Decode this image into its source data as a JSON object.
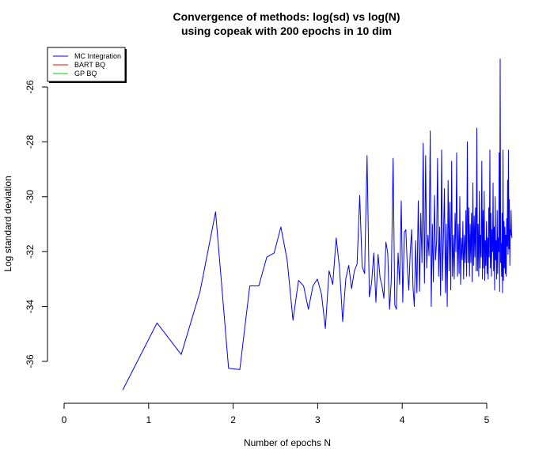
{
  "chart_data": {
    "type": "line",
    "title_line1": "Convergence of methods: log(sd) vs log(N)",
    "title_line2": "using copeak with 200 epochs in 10 dim",
    "xlabel": "Number of epochs N",
    "ylabel": "Log standard deviation",
    "xlim": [
      0,
      5.3
    ],
    "ylim": [
      -37.5,
      -24.8
    ],
    "x_ticks": [
      0,
      1,
      2,
      3,
      4,
      5
    ],
    "y_ticks": [
      -36,
      -34,
      -32,
      -30,
      -28,
      -26
    ],
    "x_tick_labels": [
      "0",
      "1",
      "2",
      "3",
      "4",
      "5"
    ],
    "y_tick_labels": [
      "-36",
      "-34",
      "-32",
      "-30",
      "-28",
      "-26"
    ],
    "legend_position": "top-left",
    "legend": [
      {
        "label": "MC Integration",
        "color": "#0000ff"
      },
      {
        "label": "BART BQ",
        "color": "#ff0000"
      },
      {
        "label": "GP BQ",
        "color": "#00cc00"
      }
    ],
    "series": [
      {
        "name": "MC Integration",
        "color": "#0000ff",
        "points": [
          [
            0.693,
            -37.05
          ],
          [
            1.099,
            -34.6
          ],
          [
            1.386,
            -35.75
          ],
          [
            1.609,
            -33.45
          ],
          [
            1.792,
            -30.55
          ],
          [
            1.946,
            -36.25
          ],
          [
            2.079,
            -36.3
          ],
          [
            2.197,
            -33.25
          ],
          [
            2.303,
            -33.25
          ],
          [
            2.398,
            -32.2
          ],
          [
            2.485,
            -32.05
          ],
          [
            2.565,
            -31.1
          ],
          [
            2.639,
            -32.3
          ],
          [
            2.708,
            -34.5
          ],
          [
            2.773,
            -33.05
          ],
          [
            2.833,
            -33.25
          ],
          [
            2.89,
            -34.1
          ],
          [
            2.944,
            -33.25
          ],
          [
            2.996,
            -33.0
          ],
          [
            3.045,
            -33.55
          ],
          [
            3.091,
            -34.8
          ],
          [
            3.135,
            -32.7
          ],
          [
            3.178,
            -33.2
          ],
          [
            3.219,
            -31.5
          ],
          [
            3.258,
            -32.6
          ],
          [
            3.296,
            -34.55
          ],
          [
            3.332,
            -33.0
          ],
          [
            3.367,
            -32.5
          ],
          [
            3.401,
            -33.35
          ],
          [
            3.434,
            -32.7
          ],
          [
            3.466,
            -32.45
          ],
          [
            3.497,
            -29.95
          ],
          [
            3.526,
            -32.55
          ],
          [
            3.555,
            -32.8
          ],
          [
            3.584,
            -28.5
          ],
          [
            3.611,
            -33.65
          ],
          [
            3.638,
            -33.15
          ],
          [
            3.664,
            -32.05
          ],
          [
            3.689,
            -33.85
          ],
          [
            3.714,
            -32.1
          ],
          [
            3.738,
            -32.95
          ],
          [
            3.761,
            -33.25
          ],
          [
            3.784,
            -33.7
          ],
          [
            3.807,
            -31.65
          ],
          [
            3.829,
            -32.05
          ],
          [
            3.85,
            -34.1
          ],
          [
            3.871,
            -33.05
          ],
          [
            3.892,
            -28.6
          ],
          [
            3.912,
            -33.95
          ],
          [
            3.932,
            -34.1
          ],
          [
            3.951,
            -32.05
          ],
          [
            3.97,
            -33.2
          ],
          [
            3.989,
            -30.15
          ],
          [
            4.007,
            -33.85
          ],
          [
            4.025,
            -31.3
          ],
          [
            4.043,
            -31.2
          ],
          [
            4.06,
            -32.5
          ],
          [
            4.078,
            -33.4
          ],
          [
            4.094,
            -32.1
          ],
          [
            4.111,
            -31.2
          ],
          [
            4.127,
            -33.3
          ],
          [
            4.143,
            -34.0
          ],
          [
            4.159,
            -31.6
          ],
          [
            4.174,
            -33.5
          ],
          [
            4.19,
            -30.15
          ],
          [
            4.205,
            -33.45
          ],
          [
            4.22,
            -30.6
          ],
          [
            4.234,
            -32.4
          ],
          [
            4.248,
            -28.05
          ],
          [
            4.263,
            -33.15
          ],
          [
            4.277,
            -28.5
          ],
          [
            4.29,
            -32.6
          ],
          [
            4.304,
            -31.4
          ],
          [
            4.317,
            -32.15
          ],
          [
            4.331,
            -27.6
          ],
          [
            4.344,
            -34.0
          ],
          [
            4.357,
            -31.0
          ],
          [
            4.369,
            -33.1
          ],
          [
            4.382,
            -29.95
          ],
          [
            4.394,
            -32.3
          ],
          [
            4.407,
            -31.6
          ],
          [
            4.419,
            -28.6
          ],
          [
            4.431,
            -32.9
          ],
          [
            4.443,
            -31.1
          ],
          [
            4.454,
            -33.6
          ],
          [
            4.466,
            -28.3
          ],
          [
            4.477,
            -33.05
          ],
          [
            4.489,
            -31.35
          ],
          [
            4.5,
            -29.7
          ],
          [
            4.511,
            -33.5
          ],
          [
            4.522,
            -31.0
          ],
          [
            4.533,
            -34.0
          ],
          [
            4.543,
            -29.4
          ],
          [
            4.554,
            -32.7
          ],
          [
            4.564,
            -30.2
          ],
          [
            4.575,
            -33.4
          ],
          [
            4.585,
            -28.7
          ],
          [
            4.595,
            -32.9
          ],
          [
            4.605,
            -31.4
          ],
          [
            4.615,
            -33.0
          ],
          [
            4.625,
            -30.6
          ],
          [
            4.635,
            -32.0
          ],
          [
            4.644,
            -28.4
          ],
          [
            4.654,
            -32.9
          ],
          [
            4.663,
            -31.0
          ],
          [
            4.673,
            -32.8
          ],
          [
            4.682,
            -30.0
          ],
          [
            4.691,
            -33.2
          ],
          [
            4.7,
            -31.5
          ],
          [
            4.71,
            -32.3
          ],
          [
            4.718,
            -30.9
          ],
          [
            4.727,
            -33.0
          ],
          [
            4.736,
            -31.4
          ],
          [
            4.745,
            -32.4
          ],
          [
            4.754,
            -30.5
          ],
          [
            4.762,
            -32.9
          ],
          [
            4.771,
            -28.0
          ],
          [
            4.779,
            -32.4
          ],
          [
            4.788,
            -30.4
          ],
          [
            4.796,
            -32.9
          ],
          [
            4.804,
            -31.0
          ],
          [
            4.812,
            -32.4
          ],
          [
            4.82,
            -30.6
          ],
          [
            4.828,
            -33.1
          ],
          [
            4.836,
            -29.5
          ],
          [
            4.844,
            -32.5
          ],
          [
            4.852,
            -30.7
          ],
          [
            4.86,
            -32.2
          ],
          [
            4.868,
            -30.4
          ],
          [
            4.875,
            -32.7
          ],
          [
            4.883,
            -27.5
          ],
          [
            4.89,
            -32.7
          ],
          [
            4.898,
            -31.0
          ],
          [
            4.905,
            -32.9
          ],
          [
            4.913,
            -29.8
          ],
          [
            4.92,
            -32.6
          ],
          [
            4.927,
            -31.4
          ],
          [
            4.934,
            -32.2
          ],
          [
            4.942,
            -28.7
          ],
          [
            4.949,
            -33.0
          ],
          [
            4.956,
            -30.5
          ],
          [
            4.963,
            -32.6
          ],
          [
            4.97,
            -29.8
          ],
          [
            4.977,
            -33.05
          ],
          [
            4.984,
            -31.6
          ],
          [
            4.99,
            -32.5
          ],
          [
            4.997,
            -30.9
          ],
          [
            5.004,
            -32.8
          ],
          [
            5.011,
            -31.5
          ],
          [
            5.017,
            -33.0
          ],
          [
            5.024,
            -30.4
          ],
          [
            5.03,
            -32.2
          ],
          [
            5.037,
            -28.3
          ],
          [
            5.043,
            -32.6
          ],
          [
            5.05,
            -30.6
          ],
          [
            5.056,
            -32.9
          ],
          [
            5.063,
            -31.2
          ],
          [
            5.069,
            -32.0
          ],
          [
            5.075,
            -29.5
          ],
          [
            5.081,
            -32.7
          ],
          [
            5.088,
            -31.1
          ],
          [
            5.094,
            -33.4
          ],
          [
            5.1,
            -30.0
          ],
          [
            5.106,
            -32.3
          ],
          [
            5.112,
            -31.6
          ],
          [
            5.118,
            -33.0
          ],
          [
            5.124,
            -30.5
          ],
          [
            5.13,
            -32.8
          ],
          [
            5.136,
            -31.5
          ],
          [
            5.142,
            -32.0
          ],
          [
            5.147,
            -28.4
          ],
          [
            5.153,
            -33.45
          ],
          [
            5.159,
            -24.98
          ],
          [
            5.165,
            -32.4
          ],
          [
            5.17,
            -31.7
          ],
          [
            5.176,
            -32.9
          ],
          [
            5.182,
            -30.6
          ],
          [
            5.187,
            -33.5
          ],
          [
            5.193,
            -28.3
          ],
          [
            5.198,
            -33.05
          ],
          [
            5.204,
            -30.9
          ],
          [
            5.209,
            -32.6
          ],
          [
            5.215,
            -31.1
          ],
          [
            5.22,
            -32.8
          ],
          [
            5.226,
            -31.4
          ],
          [
            5.231,
            -32.9
          ],
          [
            5.236,
            -30.8
          ],
          [
            5.242,
            -31.8
          ],
          [
            5.247,
            -29.4
          ],
          [
            5.252,
            -32.1
          ],
          [
            5.257,
            -28.3
          ],
          [
            5.263,
            -31.9
          ],
          [
            5.268,
            -30.1
          ],
          [
            5.273,
            -32.5
          ],
          [
            5.278,
            -31.2
          ],
          [
            5.283,
            -31.4
          ],
          [
            5.288,
            -30.5
          ],
          [
            5.293,
            -31.3
          ],
          [
            5.298,
            -31.5
          ]
        ]
      },
      {
        "name": "BART BQ",
        "color": "#ff0000",
        "points": []
      },
      {
        "name": "GP BQ",
        "color": "#00cc00",
        "points": []
      }
    ]
  }
}
